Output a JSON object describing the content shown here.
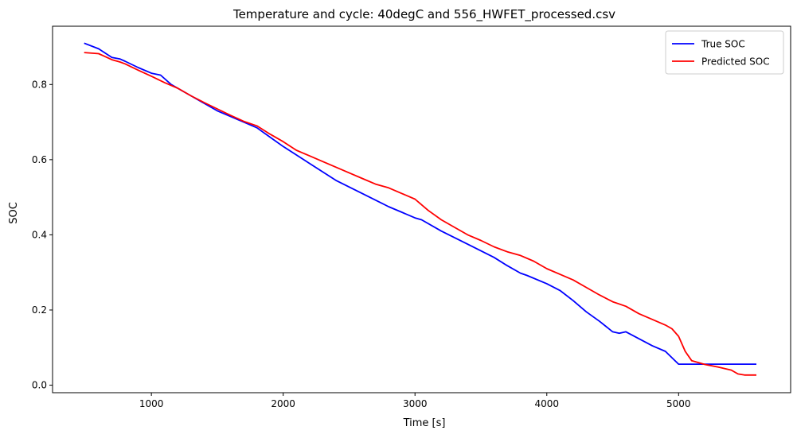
{
  "chart_data": {
    "type": "line",
    "title": "Temperature and cycle: 40degC and 556_HWFET_processed.csv",
    "xlabel": "Time [s]",
    "ylabel": "SOC",
    "xlim": [
      250,
      5850
    ],
    "ylim": [
      -0.02,
      0.955
    ],
    "xticks": [
      1000,
      2000,
      3000,
      4000,
      5000
    ],
    "xtick_labels": [
      "1000",
      "2000",
      "3000",
      "4000",
      "5000"
    ],
    "yticks": [
      0.0,
      0.2,
      0.4,
      0.6,
      0.8
    ],
    "ytick_labels": [
      "0.0",
      "0.2",
      "0.4",
      "0.6",
      "0.8"
    ],
    "grid": false,
    "legend": "top-right",
    "series": [
      {
        "name": "True SOC",
        "color": "#0000ff",
        "x": [
          490,
          600,
          700,
          760,
          800,
          900,
          1000,
          1070,
          1150,
          1300,
          1500,
          1700,
          1800,
          1900,
          2000,
          2200,
          2400,
          2600,
          2800,
          2900,
          3000,
          3050,
          3200,
          3400,
          3600,
          3700,
          3800,
          3850,
          4000,
          4100,
          4200,
          4300,
          4400,
          4500,
          4550,
          4600,
          4800,
          4900,
          5000,
          5200,
          5400,
          5590
        ],
        "y": [
          0.91,
          0.895,
          0.872,
          0.868,
          0.862,
          0.845,
          0.83,
          0.825,
          0.8,
          0.77,
          0.73,
          0.7,
          0.685,
          0.66,
          0.635,
          0.59,
          0.545,
          0.51,
          0.475,
          0.46,
          0.445,
          0.44,
          0.41,
          0.375,
          0.34,
          0.318,
          0.298,
          0.292,
          0.27,
          0.252,
          0.225,
          0.195,
          0.17,
          0.142,
          0.138,
          0.142,
          0.105,
          0.09,
          0.056,
          0.056,
          0.056,
          0.056
        ]
      },
      {
        "name": "Predicted SOC",
        "color": "#ff0000",
        "x": [
          490,
          600,
          700,
          760,
          800,
          900,
          1000,
          1100,
          1200,
          1300,
          1400,
          1500,
          1600,
          1700,
          1800,
          1900,
          2000,
          2100,
          2200,
          2300,
          2400,
          2500,
          2600,
          2700,
          2800,
          2900,
          3000,
          3100,
          3200,
          3300,
          3400,
          3500,
          3600,
          3700,
          3800,
          3900,
          4000,
          4100,
          4200,
          4300,
          4400,
          4500,
          4600,
          4700,
          4800,
          4900,
          4950,
          5000,
          5050,
          5100,
          5200,
          5300,
          5400,
          5450,
          5500,
          5590
        ],
        "y": [
          0.885,
          0.882,
          0.866,
          0.86,
          0.855,
          0.838,
          0.822,
          0.805,
          0.79,
          0.77,
          0.752,
          0.735,
          0.718,
          0.702,
          0.69,
          0.668,
          0.648,
          0.625,
          0.61,
          0.595,
          0.58,
          0.565,
          0.55,
          0.535,
          0.525,
          0.51,
          0.495,
          0.465,
          0.44,
          0.42,
          0.4,
          0.385,
          0.368,
          0.355,
          0.345,
          0.33,
          0.31,
          0.295,
          0.28,
          0.26,
          0.24,
          0.222,
          0.21,
          0.19,
          0.175,
          0.16,
          0.15,
          0.13,
          0.09,
          0.065,
          0.055,
          0.048,
          0.04,
          0.03,
          0.027,
          0.027
        ]
      }
    ]
  }
}
